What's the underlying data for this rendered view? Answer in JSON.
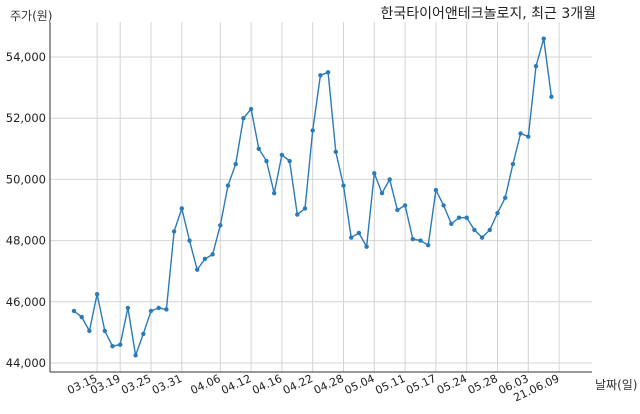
{
  "chart_data": {
    "type": "line",
    "title": "한국타이어앤테크놀로지, 최근 3개월",
    "ylabel": "주가(원)",
    "xlabel": "날짜(일)",
    "ylim": [
      44000,
      55000
    ],
    "yticks": [
      44000,
      46000,
      48000,
      50000,
      52000,
      54000
    ],
    "ytick_labels": [
      "44,000",
      "46,000",
      "48,000",
      "50,000",
      "52,000",
      "54,000"
    ],
    "xtick_labels": [
      "03.15",
      "03.19",
      "03.25",
      "03.31",
      "04.06",
      "04.12",
      "04.16",
      "04.22",
      "04.28",
      "05.04",
      "05.11",
      "05.17",
      "05.24",
      "05.28",
      "06.03",
      "21.06.09"
    ],
    "xtick_index": [
      3,
      6,
      10,
      14,
      19,
      23,
      27,
      31,
      35,
      39,
      43,
      47,
      51,
      55,
      59,
      63
    ],
    "grid": true,
    "series": [
      {
        "color": "#2a7bb8",
        "values": [
          45700,
          45500,
          45050,
          46250,
          45050,
          44550,
          44600,
          45800,
          44250,
          44950,
          45700,
          45800,
          45750,
          48300,
          49050,
          48000,
          47050,
          47400,
          47550,
          48500,
          49800,
          50500,
          52000,
          52300,
          51000,
          50600,
          49550,
          50800,
          50600,
          48850,
          49050,
          51600,
          53400,
          53500,
          50900,
          49800,
          48100,
          48250,
          47800,
          50200,
          49550,
          50000,
          49000,
          49150,
          48050,
          48000,
          47850,
          49650,
          49150,
          48550,
          48750,
          48750,
          48350,
          48100,
          48350,
          48900,
          49400,
          50500,
          51500,
          51400,
          53700,
          54600,
          52700
        ]
      }
    ]
  }
}
